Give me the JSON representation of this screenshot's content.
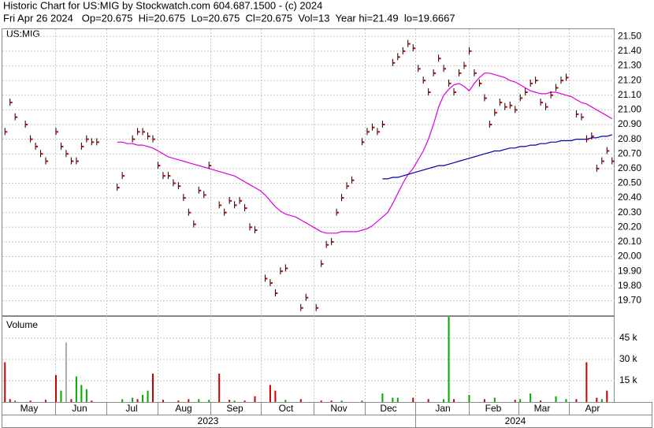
{
  "header": {
    "title": "Historic Chart for US:MIG by Stockwatch.com 604.687.1500 - (c) 2024",
    "quote": "Fri Apr 26 2024   Op=20.675  Hi=20.675  Lo=20.675  Cl=20.675  Vol=13  Year hi=21.49  lo=19.6667"
  },
  "chart_data": [
    {
      "type": "ohlc",
      "label": "US:MIG",
      "ylim": [
        19.6,
        21.55
      ],
      "yticks": [
        {
          "value": 19.7,
          "label": "19.70"
        },
        {
          "value": 19.8,
          "label": "19.80"
        },
        {
          "value": 19.9,
          "label": "19.90"
        },
        {
          "value": 20.0,
          "label": "20.00"
        },
        {
          "value": 20.1,
          "label": "20.10"
        },
        {
          "value": 20.2,
          "label": "20.20"
        },
        {
          "value": 20.3,
          "label": "20.30"
        },
        {
          "value": 20.4,
          "label": "20.40"
        },
        {
          "value": 20.5,
          "label": "20.50"
        },
        {
          "value": 20.6,
          "label": "20.60"
        },
        {
          "value": 20.7,
          "label": "20.70"
        },
        {
          "value": 20.8,
          "label": "20.80"
        },
        {
          "value": 20.9,
          "label": "20.90"
        },
        {
          "value": 21.0,
          "label": "21.00"
        },
        {
          "value": 21.1,
          "label": "21.10"
        },
        {
          "value": 21.2,
          "label": "21.20"
        },
        {
          "value": 21.3,
          "label": "21.30"
        },
        {
          "value": 21.4,
          "label": "21.40"
        },
        {
          "value": 21.5,
          "label": "21.50"
        }
      ],
      "grid": true,
      "color": "#000000",
      "tick_color": "#cc0000",
      "values": [
        20.85,
        21.05,
        20.95,
        null,
        20.9,
        20.8,
        20.75,
        20.7,
        20.65,
        null,
        20.85,
        20.75,
        20.7,
        20.65,
        20.65,
        20.75,
        20.8,
        20.78,
        20.78,
        null,
        null,
        null,
        20.47,
        20.55,
        null,
        20.8,
        20.85,
        20.85,
        20.82,
        20.8,
        20.62,
        20.55,
        20.55,
        20.5,
        20.48,
        20.4,
        20.3,
        20.22,
        20.45,
        20.42,
        20.62,
        null,
        20.35,
        20.3,
        20.38,
        20.35,
        20.38,
        20.33,
        20.2,
        20.18,
        null,
        19.85,
        19.82,
        19.75,
        19.9,
        19.92,
        null,
        null,
        19.65,
        19.72,
        null,
        19.65,
        19.95,
        20.08,
        20.1,
        20.3,
        20.4,
        20.48,
        20.52,
        null,
        20.78,
        20.85,
        20.88,
        20.85,
        20.9,
        null,
        21.32,
        21.36,
        21.4,
        21.45,
        21.42,
        21.28,
        21.2,
        21.12,
        21.25,
        21.35,
        21.28,
        21.18,
        21.12,
        21.25,
        21.3,
        21.4,
        21.25,
        21.18,
        21.08,
        20.9,
        20.98,
        21.05,
        21.02,
        21.03,
        21.0,
        21.08,
        21.12,
        21.18,
        21.2,
        21.05,
        21.02,
        21.1,
        21.15,
        21.2,
        21.22,
        null,
        20.97,
        20.95,
        20.8,
        20.82,
        20.6,
        20.65,
        20.72,
        20.65
      ],
      "lines": [
        {
          "color": "#dd00dd",
          "values": [
            null,
            null,
            null,
            null,
            null,
            null,
            null,
            null,
            null,
            null,
            null,
            null,
            null,
            null,
            null,
            null,
            null,
            null,
            null,
            null,
            null,
            null,
            20.78,
            20.78,
            20.77,
            20.77,
            20.76,
            20.76,
            20.75,
            20.74,
            20.72,
            20.7,
            20.68,
            20.67,
            20.66,
            20.65,
            20.64,
            20.63,
            20.62,
            20.61,
            20.6,
            20.59,
            20.58,
            20.57,
            20.56,
            20.55,
            20.53,
            20.51,
            20.49,
            20.47,
            20.45,
            20.42,
            20.38,
            20.34,
            20.31,
            20.29,
            20.28,
            20.27,
            20.25,
            20.23,
            20.21,
            20.19,
            20.17,
            20.16,
            20.16,
            20.16,
            20.17,
            20.17,
            20.17,
            20.17,
            20.18,
            20.19,
            20.21,
            20.24,
            20.27,
            20.3,
            20.36,
            20.43,
            20.5,
            20.56,
            20.6,
            20.66,
            20.72,
            20.8,
            20.9,
            21.02,
            21.1,
            21.14,
            21.17,
            21.18,
            21.16,
            21.13,
            21.18,
            21.22,
            21.25,
            21.25,
            21.24,
            21.23,
            21.22,
            21.2,
            21.19,
            21.17,
            21.15,
            21.13,
            21.12,
            21.11,
            21.11,
            21.12,
            21.12,
            21.11,
            21.1,
            21.09,
            21.07,
            21.05,
            21.04,
            21.02,
            21.0,
            20.98,
            20.96,
            20.94
          ]
        },
        {
          "color": "#0000aa",
          "values": [
            null,
            null,
            null,
            null,
            null,
            null,
            null,
            null,
            null,
            null,
            null,
            null,
            null,
            null,
            null,
            null,
            null,
            null,
            null,
            null,
            null,
            null,
            null,
            null,
            null,
            null,
            null,
            null,
            null,
            null,
            null,
            null,
            null,
            null,
            null,
            null,
            null,
            null,
            null,
            null,
            null,
            null,
            null,
            null,
            null,
            null,
            null,
            null,
            null,
            null,
            null,
            null,
            null,
            null,
            null,
            null,
            null,
            null,
            null,
            null,
            null,
            null,
            null,
            null,
            null,
            null,
            null,
            null,
            null,
            null,
            null,
            null,
            null,
            null,
            20.53,
            20.53,
            20.54,
            20.54,
            20.55,
            20.56,
            20.57,
            20.58,
            20.59,
            20.6,
            20.61,
            20.62,
            20.62,
            20.63,
            20.64,
            20.65,
            20.66,
            20.67,
            20.68,
            20.69,
            20.7,
            20.71,
            20.72,
            20.72,
            20.73,
            20.74,
            20.74,
            20.75,
            20.75,
            20.76,
            20.76,
            20.77,
            20.77,
            20.78,
            20.78,
            20.79,
            20.79,
            20.79,
            20.8,
            20.8,
            20.8,
            20.81,
            20.81,
            20.82,
            20.82,
            20.83
          ]
        }
      ]
    },
    {
      "type": "bar",
      "label": "Volume",
      "ylim": [
        0,
        60000
      ],
      "yticks": [
        {
          "value": 15000,
          "label": "15 k"
        },
        {
          "value": 30000,
          "label": "30 k"
        },
        {
          "value": 45000,
          "label": "45 k"
        }
      ],
      "grid": true,
      "series": [
        {
          "color": "#cc0000",
          "values": [
            28000,
            2000,
            null,
            null,
            null,
            1000,
            null,
            null,
            1500,
            null,
            19000,
            null,
            null,
            2000,
            null,
            null,
            null,
            1000,
            null,
            null,
            null,
            null,
            null,
            null,
            null,
            null,
            2000,
            null,
            null,
            20000,
            null,
            1500,
            null,
            null,
            1000,
            null,
            2000,
            null,
            null,
            null,
            null,
            null,
            20000,
            null,
            1500,
            null,
            null,
            1000,
            null,
            4000,
            null,
            null,
            12000,
            8000,
            null,
            null,
            null,
            null,
            2000,
            null,
            null,
            null,
            1000,
            null,
            1000,
            null,
            null,
            null,
            null,
            null,
            null,
            null,
            null,
            null,
            null,
            null,
            null,
            null,
            null,
            null,
            3000,
            null,
            null,
            2000,
            null,
            null,
            null,
            null,
            2000,
            null,
            null,
            null,
            null,
            null,
            2000,
            null,
            null,
            null,
            null,
            null,
            1500,
            null,
            null,
            null,
            null,
            1000,
            null,
            null,
            null,
            null,
            null,
            null,
            2000,
            null,
            28000,
            null,
            3000,
            null,
            8000,
            null
          ]
        },
        {
          "color": "#00aa00",
          "values": [
            null,
            null,
            1000,
            null,
            null,
            null,
            null,
            null,
            null,
            null,
            null,
            8000,
            null,
            null,
            18000,
            12000,
            9000,
            null,
            null,
            null,
            null,
            null,
            null,
            2000,
            null,
            3000,
            null,
            5000,
            8000,
            null,
            null,
            null,
            null,
            null,
            null,
            null,
            null,
            null,
            2000,
            null,
            1500,
            null,
            null,
            null,
            null,
            1000,
            null,
            null,
            null,
            null,
            null,
            null,
            null,
            null,
            null,
            1500,
            null,
            null,
            null,
            null,
            null,
            null,
            null,
            null,
            null,
            null,
            1000,
            null,
            null,
            null,
            1000,
            null,
            null,
            null,
            6000,
            null,
            3000,
            3000,
            null,
            null,
            null,
            null,
            null,
            null,
            null,
            null,
            2000,
            60000,
            null,
            null,
            null,
            5000,
            null,
            null,
            null,
            null,
            3000,
            null,
            null,
            null,
            null,
            2000,
            null,
            6000,
            null,
            null,
            null,
            null,
            4000,
            null,
            2000,
            null,
            null,
            null,
            null,
            null,
            null,
            2000,
            null,
            null
          ]
        },
        {
          "color": "#aaaaaa",
          "values": [
            null,
            null,
            null,
            null,
            null,
            null,
            null,
            null,
            null,
            null,
            null,
            null,
            42000,
            null,
            null,
            null,
            null,
            null,
            null,
            null,
            null,
            null,
            null,
            null,
            null,
            null,
            null,
            null,
            null,
            null,
            null,
            null,
            null,
            null,
            null,
            null,
            null,
            null,
            null,
            null,
            null,
            null,
            null,
            null,
            null,
            null,
            null,
            null,
            null,
            null,
            null,
            null,
            null,
            null,
            null,
            null,
            null,
            null,
            null,
            null,
            null,
            null,
            null,
            null,
            null,
            null,
            null,
            null,
            null,
            null,
            null,
            null,
            null,
            null,
            null,
            null,
            null,
            null,
            null,
            null,
            null,
            null,
            null,
            null,
            null,
            null,
            null,
            null,
            null,
            null,
            null,
            null,
            null,
            null,
            null,
            null,
            null,
            null,
            null,
            null,
            null,
            null,
            null,
            null,
            null,
            null,
            null,
            null,
            null,
            null,
            null,
            null,
            null,
            null,
            null,
            null,
            null,
            null,
            null,
            null
          ]
        }
      ]
    }
  ],
  "axis": {
    "months": [
      "May",
      "Jun",
      "Jul",
      "Aug",
      "Sep",
      "Oct",
      "Nov",
      "Dec",
      "Jan",
      "Feb",
      "Mar",
      "Apr"
    ],
    "years": [
      "2023",
      "2024"
    ]
  }
}
